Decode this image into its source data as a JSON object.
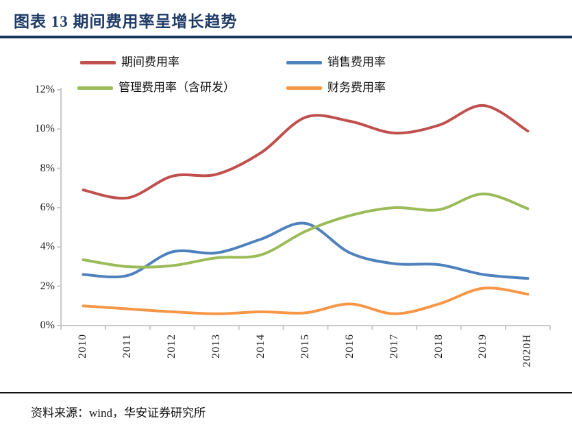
{
  "header": {
    "title": "图表 13 期间费用率呈增长趋势"
  },
  "footer": {
    "source": "资料来源：wind，华安证券研究所"
  },
  "colors": {
    "title_navy": "#1e3a66",
    "rule_navy": "#17375e",
    "axis_gray": "#c9c9c9",
    "divider_black": "#111111"
  },
  "chart_data": {
    "type": "line",
    "smooth": true,
    "title": "图表 13 期间费用率呈增长趋势",
    "categories": [
      "2010",
      "2011",
      "2012",
      "2013",
      "2014",
      "2015",
      "2016",
      "2017",
      "2018",
      "2019",
      "2020H"
    ],
    "series": [
      {
        "name": "期间费用率",
        "color": "#c0504d",
        "values": [
          6.9,
          6.5,
          7.6,
          7.7,
          8.8,
          10.6,
          10.4,
          9.8,
          10.2,
          11.2,
          9.9
        ]
      },
      {
        "name": "销售费用率",
        "color": "#4f81bd",
        "values": [
          2.6,
          2.55,
          3.75,
          3.7,
          4.4,
          5.2,
          3.7,
          3.15,
          3.1,
          2.6,
          2.4
        ]
      },
      {
        "name": "管理费用率（含研发）",
        "color": "#9bbb59",
        "values": [
          3.35,
          3.0,
          3.05,
          3.45,
          3.6,
          4.8,
          5.6,
          6.0,
          5.9,
          6.7,
          5.95
        ]
      },
      {
        "name": "财务费用率",
        "color": "#f79646",
        "values": [
          1.0,
          0.85,
          0.7,
          0.6,
          0.7,
          0.65,
          1.1,
          0.6,
          1.1,
          1.9,
          1.6
        ]
      }
    ],
    "ytick_labels": [
      "0%",
      "2%",
      "4%",
      "6%",
      "8%",
      "10%",
      "12%"
    ],
    "ylim": [
      0,
      12
    ],
    "xlabel": "",
    "ylabel": "",
    "grid": false,
    "legend_position": "top"
  }
}
